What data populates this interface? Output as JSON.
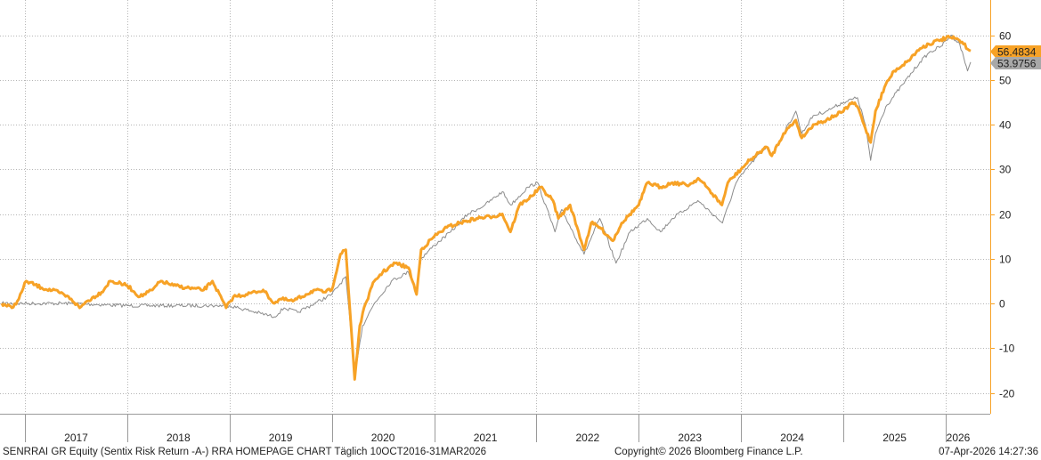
{
  "footer": {
    "left": "SENRRAI GR Equity (Sentix Risk Return -A-) RRA HOMEPAGE CHART Täglich 10OCT2016-31MAR2026",
    "center": "Copyright© 2026 Bloomberg Finance L.P.",
    "right": "07-Apr-2026 14:27:36"
  },
  "colors": {
    "fund": "#f7a226",
    "benchmark": "#8c8c8c",
    "grid": "#b5b5b5",
    "axis": "#f7a226"
  },
  "chart_data": {
    "type": "line",
    "x_range": [
      "2016-10-10",
      "2026-03-31"
    ],
    "ylim": [
      -25,
      65
    ],
    "y_ticks": [
      -20,
      -10,
      0,
      10,
      20,
      30,
      40,
      50,
      60
    ],
    "y_axis_position": "right",
    "grid": true,
    "year_labels": [
      "2017",
      "2018",
      "2019",
      "2020",
      "2021",
      "2022",
      "2023",
      "2024",
      "2025",
      "2026"
    ],
    "last_value_tags": [
      "56.4834",
      "53.9756"
    ],
    "series": [
      {
        "key": "fund",
        "points": [
          [
            "2016-10-10",
            0
          ],
          [
            "2016-11-15",
            -1
          ],
          [
            "2016-12-10",
            1
          ],
          [
            "2017-01-05",
            5
          ],
          [
            "2017-03-01",
            3.5
          ],
          [
            "2017-05-01",
            2.5
          ],
          [
            "2017-06-15",
            1
          ],
          [
            "2017-07-15",
            -1
          ],
          [
            "2017-08-10",
            0.5
          ],
          [
            "2017-10-01",
            2.5
          ],
          [
            "2017-11-01",
            5
          ],
          [
            "2018-01-01",
            4
          ],
          [
            "2018-02-15",
            1.5
          ],
          [
            "2018-04-01",
            3
          ],
          [
            "2018-05-01",
            5
          ],
          [
            "2018-06-15",
            4
          ],
          [
            "2018-08-01",
            3.5
          ],
          [
            "2018-10-01",
            3
          ],
          [
            "2018-11-01",
            5
          ],
          [
            "2018-12-20",
            -1
          ],
          [
            "2019-01-15",
            1.5
          ],
          [
            "2019-03-01",
            2
          ],
          [
            "2019-05-01",
            3
          ],
          [
            "2019-06-10",
            0
          ],
          [
            "2019-07-01",
            1
          ],
          [
            "2019-08-15",
            0.5
          ],
          [
            "2019-10-01",
            2
          ],
          [
            "2019-11-01",
            3
          ],
          [
            "2019-12-01",
            2.5
          ],
          [
            "2020-01-01",
            3
          ],
          [
            "2020-02-01",
            11
          ],
          [
            "2020-02-20",
            12
          ],
          [
            "2020-03-10",
            -5
          ],
          [
            "2020-03-23",
            -17
          ],
          [
            "2020-04-10",
            -5
          ],
          [
            "2020-05-01",
            0
          ],
          [
            "2020-06-01",
            5
          ],
          [
            "2020-07-01",
            7
          ],
          [
            "2020-08-15",
            9
          ],
          [
            "2020-10-01",
            8
          ],
          [
            "2020-10-30",
            2
          ],
          [
            "2020-11-15",
            12
          ],
          [
            "2021-01-01",
            15
          ],
          [
            "2021-02-15",
            17
          ],
          [
            "2021-04-01",
            18
          ],
          [
            "2021-06-01",
            19
          ],
          [
            "2021-08-01",
            19.5
          ],
          [
            "2021-09-01",
            20
          ],
          [
            "2021-09-30",
            16
          ],
          [
            "2021-11-01",
            22
          ],
          [
            "2021-12-15",
            24
          ],
          [
            "2022-01-15",
            26
          ],
          [
            "2022-03-01",
            23
          ],
          [
            "2022-03-20",
            19
          ],
          [
            "2022-05-01",
            22
          ],
          [
            "2022-06-20",
            12
          ],
          [
            "2022-07-15",
            18
          ],
          [
            "2022-08-15",
            17
          ],
          [
            "2022-10-01",
            14
          ],
          [
            "2022-11-01",
            18
          ],
          [
            "2023-01-01",
            22
          ],
          [
            "2023-02-01",
            27
          ],
          [
            "2023-03-20",
            26
          ],
          [
            "2023-05-01",
            27
          ],
          [
            "2023-07-01",
            26.5
          ],
          [
            "2023-08-01",
            28
          ],
          [
            "2023-09-01",
            26
          ],
          [
            "2023-10-25",
            22
          ],
          [
            "2023-11-15",
            27
          ],
          [
            "2024-01-01",
            30
          ],
          [
            "2024-02-01",
            32
          ],
          [
            "2024-04-01",
            35
          ],
          [
            "2024-04-20",
            33
          ],
          [
            "2024-06-01",
            38
          ],
          [
            "2024-07-15",
            41
          ],
          [
            "2024-08-05",
            37
          ],
          [
            "2024-09-15",
            40
          ],
          [
            "2024-11-01",
            41
          ],
          [
            "2024-12-01",
            42
          ],
          [
            "2025-01-01",
            43
          ],
          [
            "2025-02-01",
            45
          ],
          [
            "2025-02-20",
            44
          ],
          [
            "2025-03-15",
            40
          ],
          [
            "2025-04-08",
            36
          ],
          [
            "2025-04-25",
            43
          ],
          [
            "2025-06-01",
            49
          ],
          [
            "2025-07-01",
            52
          ],
          [
            "2025-08-15",
            54
          ],
          [
            "2025-10-01",
            57
          ],
          [
            "2025-11-01",
            58
          ],
          [
            "2025-12-15",
            59
          ],
          [
            "2026-01-15",
            59.5
          ],
          [
            "2026-02-15",
            59
          ],
          [
            "2026-03-05",
            58
          ],
          [
            "2026-03-31",
            56.4834
          ]
        ]
      },
      {
        "key": "benchmark",
        "points": [
          [
            "2016-10-10",
            0
          ],
          [
            "2017-06-15",
            0
          ],
          [
            "2018-01-01",
            -0.5
          ],
          [
            "2019-01-01",
            -0.5
          ],
          [
            "2019-06-10",
            -3
          ],
          [
            "2019-07-15",
            -1
          ],
          [
            "2019-09-01",
            -2
          ],
          [
            "2019-11-01",
            0
          ],
          [
            "2020-01-01",
            2
          ],
          [
            "2020-02-20",
            6
          ],
          [
            "2020-03-23",
            -16
          ],
          [
            "2020-04-20",
            -5
          ],
          [
            "2020-06-01",
            0
          ],
          [
            "2020-08-01",
            5
          ],
          [
            "2020-10-01",
            7
          ],
          [
            "2020-10-30",
            3
          ],
          [
            "2020-11-15",
            10
          ],
          [
            "2021-01-01",
            13
          ],
          [
            "2021-03-01",
            16
          ],
          [
            "2021-05-01",
            20
          ],
          [
            "2021-07-01",
            22
          ],
          [
            "2021-09-01",
            25
          ],
          [
            "2021-10-01",
            22
          ],
          [
            "2021-12-01",
            26
          ],
          [
            "2022-01-05",
            27
          ],
          [
            "2022-03-08",
            16
          ],
          [
            "2022-04-01",
            21
          ],
          [
            "2022-06-20",
            11
          ],
          [
            "2022-08-15",
            19
          ],
          [
            "2022-10-12",
            9
          ],
          [
            "2022-12-01",
            16
          ],
          [
            "2023-02-01",
            19
          ],
          [
            "2023-03-20",
            16
          ],
          [
            "2023-05-01",
            19
          ],
          [
            "2023-07-31",
            23
          ],
          [
            "2023-10-27",
            18
          ],
          [
            "2023-12-15",
            27
          ],
          [
            "2024-02-01",
            31
          ],
          [
            "2024-04-01",
            35
          ],
          [
            "2024-04-20",
            33
          ],
          [
            "2024-06-01",
            38
          ],
          [
            "2024-07-15",
            43
          ],
          [
            "2024-08-05",
            38
          ],
          [
            "2024-09-15",
            42
          ],
          [
            "2024-11-01",
            43
          ],
          [
            "2024-12-01",
            44
          ],
          [
            "2025-01-01",
            45
          ],
          [
            "2025-02-20",
            46
          ],
          [
            "2025-03-20",
            40
          ],
          [
            "2025-04-08",
            32
          ],
          [
            "2025-04-25",
            38
          ],
          [
            "2025-06-01",
            44
          ],
          [
            "2025-08-01",
            49
          ],
          [
            "2025-10-01",
            54
          ],
          [
            "2025-11-01",
            56
          ],
          [
            "2025-12-15",
            57.5
          ],
          [
            "2026-01-20",
            60
          ],
          [
            "2026-02-20",
            58
          ],
          [
            "2026-03-20",
            52
          ],
          [
            "2026-03-31",
            53.9756
          ]
        ]
      }
    ]
  }
}
